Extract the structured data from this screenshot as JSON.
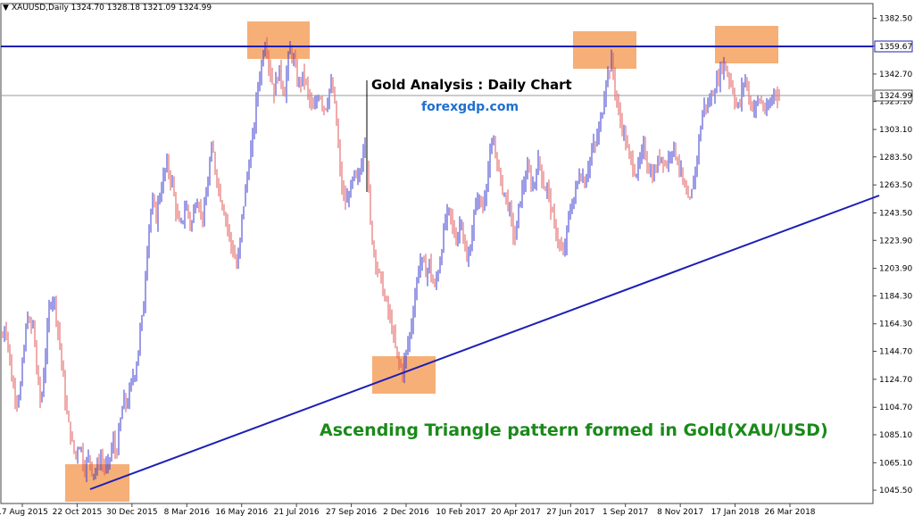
{
  "header": {
    "symbol_text": "XAUUSD,Daily  1324.70 1328.18 1321.09 1324.99"
  },
  "chart_data": {
    "type": "candlestick",
    "title": "Gold Analysis : Daily Chart",
    "subtitle": "forexgdp.com",
    "annotation": "Ascending Triangle pattern formed in Gold(XAU/USD)",
    "ylim": [
      1036,
      1393
    ],
    "y_ticks": [
      "1382.50",
      "1362.70",
      "1342.70",
      "1323.10",
      "1303.10",
      "1283.50",
      "1263.50",
      "1243.50",
      "1223.90",
      "1203.90",
      "1184.30",
      "1164.30",
      "1144.70",
      "1124.70",
      "1104.70",
      "1085.10",
      "1065.10",
      "1045.50"
    ],
    "x_ticks": [
      "17 Aug 2015",
      "22 Oct 2015",
      "30 Dec 2015",
      "8 Mar 2016",
      "16 May 2016",
      "21 Jul 2016",
      "27 Sep 2016",
      "2 Dec 2016",
      "10 Feb 2017",
      "20 Apr 2017",
      "27 Jun 2017",
      "1 Sep 2017",
      "8 Nov 2017",
      "17 Jan 2018",
      "26 Mar 2018"
    ],
    "resistance_level": "1359.67",
    "current_price": "1324.99",
    "price_path": [
      [
        0,
        1155
      ],
      [
        3,
        1165
      ],
      [
        6,
        1150
      ],
      [
        9,
        1130
      ],
      [
        13,
        1115
      ],
      [
        17,
        1110
      ],
      [
        20,
        1120
      ],
      [
        23,
        1140
      ],
      [
        26,
        1160
      ],
      [
        28,
        1170
      ],
      [
        31,
        1160
      ],
      [
        34,
        1165
      ],
      [
        37,
        1140
      ],
      [
        40,
        1120
      ],
      [
        43,
        1105
      ],
      [
        46,
        1130
      ],
      [
        49,
        1150
      ],
      [
        52,
        1175
      ],
      [
        55,
        1185
      ],
      [
        58,
        1180
      ],
      [
        61,
        1165
      ],
      [
        64,
        1150
      ],
      [
        67,
        1130
      ],
      [
        70,
        1110
      ],
      [
        73,
        1095
      ],
      [
        76,
        1085
      ],
      [
        79,
        1075
      ],
      [
        82,
        1070
      ],
      [
        85,
        1080
      ],
      [
        88,
        1075
      ],
      [
        91,
        1060
      ],
      [
        94,
        1065
      ],
      [
        97,
        1070
      ],
      [
        100,
        1060
      ],
      [
        103,
        1058
      ],
      [
        106,
        1062
      ],
      [
        109,
        1070
      ],
      [
        112,
        1065
      ],
      [
        115,
        1060
      ],
      [
        118,
        1063
      ],
      [
        121,
        1072
      ],
      [
        124,
        1080
      ],
      [
        127,
        1070
      ],
      [
        130,
        1085
      ],
      [
        133,
        1100
      ],
      [
        136,
        1110
      ],
      [
        139,
        1105
      ],
      [
        142,
        1115
      ],
      [
        145,
        1125
      ],
      [
        148,
        1130
      ],
      [
        151,
        1140
      ],
      [
        154,
        1160
      ],
      [
        157,
        1170
      ],
      [
        160,
        1200
      ],
      [
        163,
        1230
      ],
      [
        166,
        1245
      ],
      [
        169,
        1250
      ],
      [
        172,
        1240
      ],
      [
        175,
        1255
      ],
      [
        178,
        1262
      ],
      [
        181,
        1272
      ],
      [
        184,
        1278
      ],
      [
        187,
        1270
      ],
      [
        190,
        1265
      ],
      [
        193,
        1250
      ],
      [
        196,
        1240
      ],
      [
        199,
        1232
      ],
      [
        202,
        1240
      ],
      [
        205,
        1250
      ],
      [
        208,
        1243
      ],
      [
        211,
        1232
      ],
      [
        214,
        1245
      ],
      [
        217,
        1255
      ],
      [
        220,
        1250
      ],
      [
        223,
        1240
      ],
      [
        226,
        1245
      ],
      [
        229,
        1260
      ],
      [
        232,
        1280
      ],
      [
        235,
        1290
      ],
      [
        238,
        1275
      ],
      [
        241,
        1265
      ],
      [
        244,
        1255
      ],
      [
        247,
        1248
      ],
      [
        250,
        1240
      ],
      [
        253,
        1230
      ],
      [
        256,
        1220
      ],
      [
        259,
        1215
      ],
      [
        262,
        1205
      ],
      [
        265,
        1215
      ],
      [
        268,
        1240
      ],
      [
        271,
        1255
      ],
      [
        274,
        1270
      ],
      [
        277,
        1285
      ],
      [
        280,
        1295
      ],
      [
        283,
        1315
      ],
      [
        286,
        1335
      ],
      [
        289,
        1345
      ],
      [
        292,
        1360
      ],
      [
        295,
        1368
      ],
      [
        298,
        1350
      ],
      [
        301,
        1340
      ],
      [
        304,
        1330
      ],
      [
        307,
        1340
      ],
      [
        310,
        1345
      ],
      [
        313,
        1335
      ],
      [
        316,
        1330
      ],
      [
        319,
        1350
      ],
      [
        322,
        1360
      ],
      [
        325,
        1355
      ],
      [
        328,
        1345
      ],
      [
        331,
        1335
      ],
      [
        334,
        1338
      ],
      [
        337,
        1342
      ],
      [
        340,
        1335
      ],
      [
        343,
        1325
      ],
      [
        346,
        1320
      ],
      [
        349,
        1315
      ],
      [
        352,
        1325
      ],
      [
        355,
        1330
      ],
      [
        358,
        1322
      ],
      [
        361,
        1318
      ],
      [
        364,
        1325
      ],
      [
        367,
        1335
      ],
      [
        370,
        1330
      ],
      [
        373,
        1315
      ],
      [
        376,
        1290
      ],
      [
        379,
        1265
      ],
      [
        382,
        1255
      ],
      [
        385,
        1250
      ],
      [
        388,
        1258
      ],
      [
        391,
        1263
      ],
      [
        394,
        1270
      ],
      [
        397,
        1265
      ],
      [
        400,
        1272
      ],
      [
        403,
        1285
      ],
      [
        406,
        1300
      ],
      [
        409,
        1270
      ],
      [
        412,
        1235
      ],
      [
        415,
        1220
      ],
      [
        418,
        1210
      ],
      [
        421,
        1200
      ],
      [
        424,
        1195
      ],
      [
        427,
        1185
      ],
      [
        430,
        1178
      ],
      [
        433,
        1170
      ],
      [
        436,
        1162
      ],
      [
        439,
        1150
      ],
      [
        442,
        1140
      ],
      [
        445,
        1135
      ],
      [
        448,
        1130
      ],
      [
        451,
        1140
      ],
      [
        454,
        1150
      ],
      [
        457,
        1160
      ],
      [
        460,
        1175
      ],
      [
        463,
        1190
      ],
      [
        466,
        1205
      ],
      [
        469,
        1210
      ],
      [
        472,
        1205
      ],
      [
        475,
        1200
      ],
      [
        478,
        1208
      ],
      [
        481,
        1195
      ],
      [
        484,
        1190
      ],
      [
        487,
        1200
      ],
      [
        490,
        1210
      ],
      [
        493,
        1225
      ],
      [
        496,
        1238
      ],
      [
        499,
        1245
      ],
      [
        502,
        1240
      ],
      [
        505,
        1230
      ],
      [
        508,
        1225
      ],
      [
        511,
        1232
      ],
      [
        514,
        1240
      ],
      [
        517,
        1220
      ],
      [
        520,
        1208
      ],
      [
        523,
        1215
      ],
      [
        526,
        1232
      ],
      [
        529,
        1245
      ],
      [
        532,
        1255
      ],
      [
        535,
        1250
      ],
      [
        538,
        1248
      ],
      [
        541,
        1262
      ],
      [
        544,
        1275
      ],
      [
        547,
        1288
      ],
      [
        550,
        1292
      ],
      [
        553,
        1285
      ],
      [
        556,
        1272
      ],
      [
        559,
        1262
      ],
      [
        562,
        1258
      ],
      [
        565,
        1252
      ],
      [
        568,
        1245
      ],
      [
        571,
        1232
      ],
      [
        574,
        1225
      ],
      [
        577,
        1240
      ],
      [
        580,
        1255
      ],
      [
        583,
        1262
      ],
      [
        586,
        1270
      ],
      [
        589,
        1275
      ],
      [
        592,
        1265
      ],
      [
        595,
        1262
      ],
      [
        598,
        1275
      ],
      [
        601,
        1282
      ],
      [
        604,
        1270
      ],
      [
        607,
        1260
      ],
      [
        610,
        1262
      ],
      [
        613,
        1252
      ],
      [
        616,
        1240
      ],
      [
        619,
        1232
      ],
      [
        622,
        1225
      ],
      [
        625,
        1218
      ],
      [
        628,
        1212
      ],
      [
        631,
        1225
      ],
      [
        634,
        1240
      ],
      [
        637,
        1248
      ],
      [
        640,
        1255
      ],
      [
        643,
        1262
      ],
      [
        646,
        1272
      ],
      [
        649,
        1270
      ],
      [
        652,
        1265
      ],
      [
        655,
        1275
      ],
      [
        658,
        1282
      ],
      [
        661,
        1290
      ],
      [
        664,
        1292
      ],
      [
        667,
        1300
      ],
      [
        670,
        1310
      ],
      [
        673,
        1322
      ],
      [
        676,
        1340
      ],
      [
        679,
        1345
      ],
      [
        682,
        1352
      ],
      [
        685,
        1338
      ],
      [
        688,
        1322
      ],
      [
        691,
        1312
      ],
      [
        694,
        1305
      ],
      [
        697,
        1298
      ],
      [
        700,
        1288
      ],
      [
        703,
        1282
      ],
      [
        706,
        1278
      ],
      [
        709,
        1272
      ],
      [
        712,
        1275
      ],
      [
        715,
        1283
      ],
      [
        718,
        1290
      ],
      [
        721,
        1283
      ],
      [
        724,
        1275
      ],
      [
        727,
        1270
      ],
      [
        730,
        1272
      ],
      [
        733,
        1278
      ],
      [
        736,
        1283
      ],
      [
        739,
        1285
      ],
      [
        742,
        1278
      ],
      [
        745,
        1280
      ],
      [
        748,
        1288
      ],
      [
        751,
        1292
      ],
      [
        754,
        1285
      ],
      [
        757,
        1280
      ],
      [
        760,
        1272
      ],
      [
        763,
        1262
      ],
      [
        766,
        1255
      ],
      [
        769,
        1248
      ],
      [
        772,
        1258
      ],
      [
        775,
        1270
      ],
      [
        778,
        1285
      ],
      [
        781,
        1300
      ],
      [
        784,
        1315
      ],
      [
        787,
        1322
      ],
      [
        790,
        1320
      ],
      [
        793,
        1325
      ],
      [
        796,
        1330
      ],
      [
        799,
        1335
      ],
      [
        802,
        1340
      ],
      [
        805,
        1348
      ],
      [
        808,
        1350
      ],
      [
        811,
        1345
      ],
      [
        814,
        1340
      ],
      [
        817,
        1335
      ],
      [
        820,
        1325
      ],
      [
        823,
        1318
      ],
      [
        826,
        1322
      ],
      [
        829,
        1335
      ],
      [
        832,
        1340
      ],
      [
        835,
        1328
      ],
      [
        838,
        1322
      ],
      [
        841,
        1318
      ],
      [
        844,
        1320
      ],
      [
        847,
        1325
      ],
      [
        850,
        1322
      ],
      [
        853,
        1318
      ],
      [
        856,
        1315
      ],
      [
        859,
        1320
      ],
      [
        862,
        1325
      ],
      [
        865,
        1333
      ],
      [
        868,
        1328
      ],
      [
        870,
        1325
      ]
    ]
  }
}
